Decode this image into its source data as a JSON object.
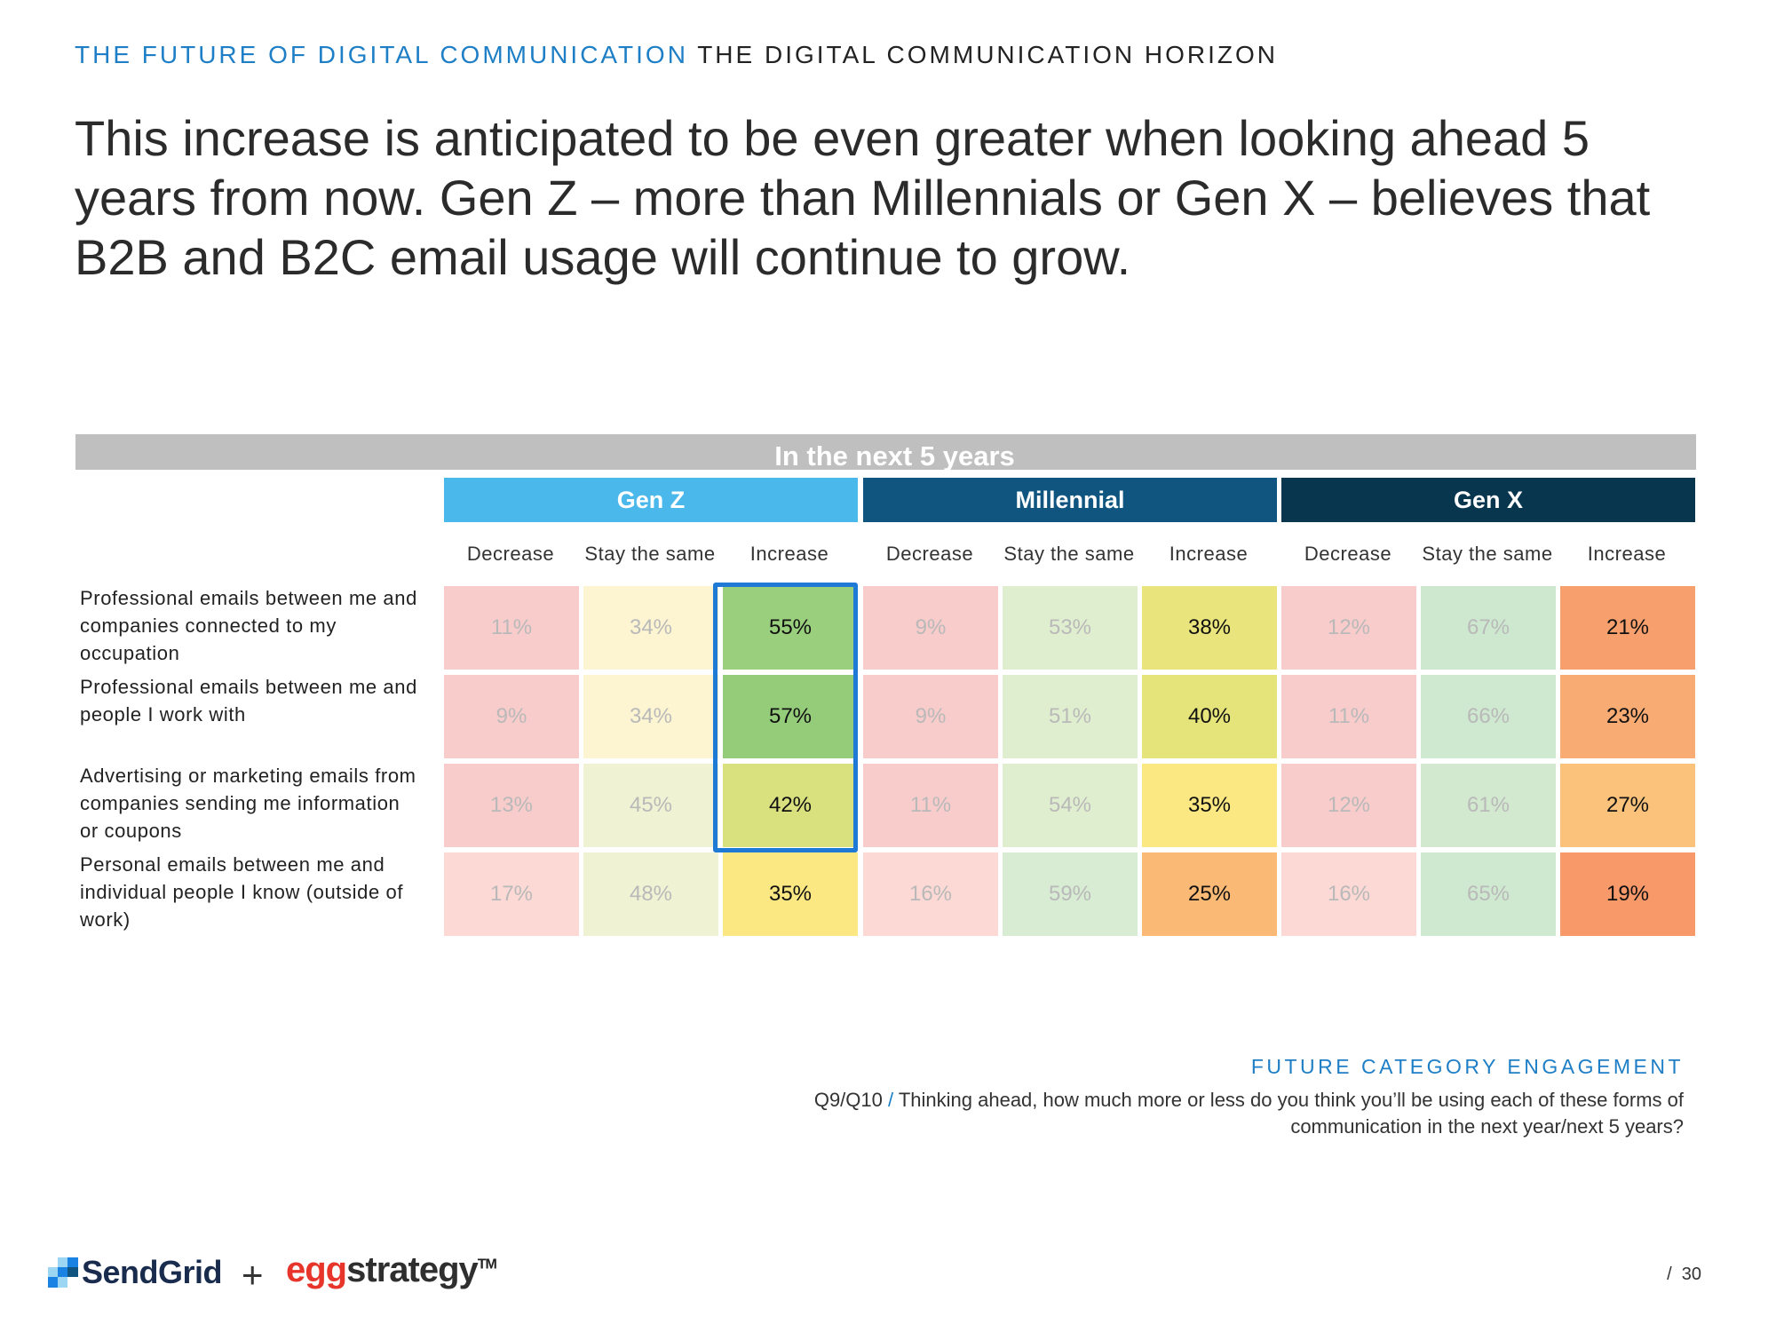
{
  "header": {
    "eyebrow_blue": "THE FUTURE OF DIGITAL COMMUNICATION",
    "eyebrow_dark": "THE DIGITAL COMMUNICATION HORIZON",
    "headline": "This increase is anticipated to be even greater when looking ahead 5 years from now. Gen Z – more than Millennials or Gen X – believes that B2B and B2C email usage will continue to grow."
  },
  "chart_data": {
    "type": "table",
    "title": "In the next 5 years",
    "groups": [
      {
        "name": "Gen Z",
        "color": "#4bb8ec"
      },
      {
        "name": "Millennial",
        "color": "#0f5580"
      },
      {
        "name": "Gen X",
        "color": "#08364f"
      }
    ],
    "columns": [
      "Decrease",
      "Stay the same",
      "Increase",
      "Decrease",
      "Stay the same",
      "Increase",
      "Decrease",
      "Stay the same",
      "Increase"
    ],
    "rows": [
      {
        "label": "Professional emails between me and companies connected to my occupation",
        "values": [
          "11%",
          "34%",
          "55%",
          "9%",
          "53%",
          "38%",
          "12%",
          "67%",
          "21%"
        ]
      },
      {
        "label": "Professional emails between me and people I work with",
        "values": [
          "9%",
          "34%",
          "57%",
          "9%",
          "51%",
          "40%",
          "11%",
          "66%",
          "23%"
        ]
      },
      {
        "label": "Advertising or marketing emails from companies sending me information or coupons",
        "values": [
          "13%",
          "45%",
          "42%",
          "11%",
          "54%",
          "35%",
          "12%",
          "61%",
          "27%"
        ]
      },
      {
        "label": "Personal emails between me and individual people I know (outside of work)",
        "values": [
          "17%",
          "48%",
          "35%",
          "16%",
          "59%",
          "25%",
          "16%",
          "65%",
          "19%"
        ]
      }
    ],
    "cell_colors": [
      [
        "#f9cccc",
        "#fdf5d2",
        "#99cf7d",
        "#f9cccc",
        "#e0eed0",
        "#e9e47b",
        "#f9cccc",
        "#cde8cf",
        "#f8a06d"
      ],
      [
        "#f9cccc",
        "#fdf5d2",
        "#94cc7a",
        "#f9cccc",
        "#e0eed0",
        "#e5e47b",
        "#f9cccc",
        "#cfe8d0",
        "#f9ab74"
      ],
      [
        "#f9cccc",
        "#eff3d3",
        "#d9e07e",
        "#f9cccc",
        "#e0eed0",
        "#fbe883",
        "#f9cccc",
        "#d2e9d0",
        "#fbc27b"
      ],
      [
        "#fcd9d4",
        "#eff3d3",
        "#fbe883",
        "#fcd9d4",
        "#d7ecd2",
        "#fbb976",
        "#fcd9d4",
        "#cfe8d0",
        "#f8996a"
      ]
    ],
    "highlight_column": "Gen Z · Increase"
  },
  "footnote": {
    "title": "FUTURE CATEGORY ENGAGEMENT",
    "code": "Q9/Q10",
    "slash": "/",
    "question": "Thinking ahead, how much more or less do you think you’ll be using each of these forms of communication in the next year/next 5 years?"
  },
  "footer": {
    "logo1": "SendGrid",
    "plus": "+",
    "logo2_a": "egg",
    "logo2_b": "strategy",
    "tm": "TM",
    "page_slash": "/",
    "page": "30"
  }
}
